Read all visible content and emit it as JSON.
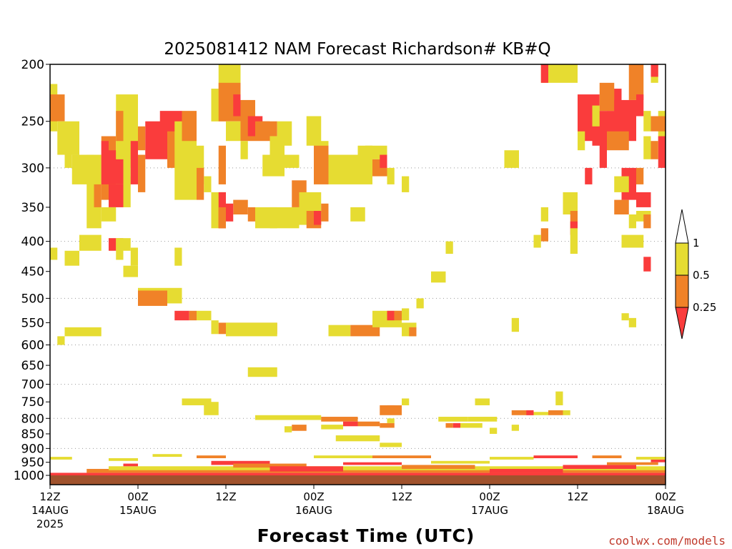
{
  "title": "2025081412 NAM Forecast Richardson# KB#Q",
  "watermark": "coolwx.com/models",
  "chart_data": {
    "type": "heatmap",
    "title": "2025081412 NAM Forecast Richardson# KB#Q",
    "xlabel": "Forecast Time (UTC)",
    "ylabel": "",
    "x_unit": "hours since 2025-08-14 12Z",
    "xlim": [
      0,
      84
    ],
    "ylim": [
      1000,
      200
    ],
    "y_scale": "log",
    "grid": "dotted horizontal",
    "y_ticks": [
      200,
      250,
      300,
      350,
      400,
      450,
      500,
      550,
      600,
      650,
      700,
      750,
      800,
      850,
      900,
      950,
      1000
    ],
    "y_gridlines": [
      300,
      400,
      500,
      600,
      700,
      800,
      900
    ],
    "x_ticks": [
      {
        "x": 0,
        "label": "12Z",
        "sub": "14AUG",
        "sub2": "2025"
      },
      {
        "x": 12,
        "label": "00Z",
        "sub": "15AUG",
        "sub2": ""
      },
      {
        "x": 24,
        "label": "12Z",
        "sub": "",
        "sub2": ""
      },
      {
        "x": 36,
        "label": "00Z",
        "sub": "16AUG",
        "sub2": ""
      },
      {
        "x": 48,
        "label": "12Z",
        "sub": "",
        "sub2": ""
      },
      {
        "x": 60,
        "label": "00Z",
        "sub": "17AUG",
        "sub2": ""
      },
      {
        "x": 72,
        "label": "12Z",
        "sub": "",
        "sub2": ""
      },
      {
        "x": 84,
        "label": "00Z",
        "sub": "18AUG",
        "sub2": ""
      }
    ],
    "legend": {
      "placement": "right",
      "bins": [
        {
          "range": [
            0.5,
            1.0
          ],
          "color": "#e6dc32"
        },
        {
          "range": [
            0.25,
            0.5
          ],
          "color": "#f08228"
        },
        {
          "range": [
            0.0,
            0.25
          ],
          "color": "#fa3c3c"
        }
      ],
      "labels": [
        "1",
        "0.5",
        "0.25"
      ]
    },
    "ground_color": "#a0522d",
    "colors": {
      "y": "#e6dc32",
      "o": "#f08228",
      "r": "#fa3c3c"
    },
    "cells": [
      [
        "y",
        0,
        1,
        216,
        260
      ],
      [
        "o",
        0,
        2,
        225,
        250
      ],
      [
        "y",
        1,
        4,
        250,
        285
      ],
      [
        "y",
        2,
        3,
        270,
        300
      ],
      [
        "y",
        3,
        6,
        285,
        320
      ],
      [
        "y",
        5,
        7,
        285,
        380
      ],
      [
        "o",
        6,
        7,
        320,
        350
      ],
      [
        "o",
        7,
        9,
        265,
        340
      ],
      [
        "r",
        7,
        8,
        270,
        320
      ],
      [
        "r",
        8,
        10,
        320,
        350
      ],
      [
        "y",
        7,
        9,
        350,
        370
      ],
      [
        "y",
        9,
        11,
        285,
        320
      ],
      [
        "y",
        10,
        11,
        310,
        350
      ],
      [
        "r",
        8,
        10,
        280,
        320
      ],
      [
        "y",
        9,
        11,
        260,
        290
      ],
      [
        "y",
        9,
        12,
        225,
        290
      ],
      [
        "o",
        9,
        10,
        240,
        270
      ],
      [
        "y",
        11,
        12,
        260,
        300
      ],
      [
        "r",
        11,
        12,
        270,
        320
      ],
      [
        "o",
        12,
        13,
        285,
        330
      ],
      [
        "r",
        13,
        16,
        250,
        290
      ],
      [
        "o",
        12,
        13,
        255,
        280
      ],
      [
        "r",
        15,
        18,
        240,
        285
      ],
      [
        "o",
        16,
        18,
        260,
        300
      ],
      [
        "y",
        17,
        20,
        250,
        340
      ],
      [
        "o",
        18,
        20,
        240,
        270
      ],
      [
        "y",
        19,
        21,
        275,
        320
      ],
      [
        "o",
        20,
        21,
        300,
        340
      ],
      [
        "y",
        21,
        22,
        310,
        330
      ],
      [
        "y",
        22,
        24,
        220,
        250
      ],
      [
        "y",
        22,
        24,
        330,
        380
      ],
      [
        "o",
        23,
        24,
        275,
        320
      ],
      [
        "r",
        23,
        24,
        330,
        380
      ],
      [
        "o",
        23,
        24,
        350,
        380
      ],
      [
        "y",
        23,
        26,
        200,
        220
      ],
      [
        "y",
        22,
        23,
        230,
        250
      ],
      [
        "o",
        23,
        26,
        215,
        250
      ],
      [
        "r",
        25,
        26,
        225,
        245
      ],
      [
        "y",
        24,
        26,
        250,
        270
      ],
      [
        "o",
        26,
        28,
        230,
        270
      ],
      [
        "r",
        27,
        29,
        245,
        265
      ],
      [
        "y",
        26,
        27,
        270,
        290
      ],
      [
        "o",
        28,
        30,
        250,
        270
      ],
      [
        "y",
        29,
        30,
        285,
        310
      ],
      [
        "y",
        28,
        31,
        350,
        380
      ],
      [
        "o",
        25,
        27,
        340,
        360
      ],
      [
        "r",
        24,
        25,
        345,
        370
      ],
      [
        "o",
        27,
        28,
        350,
        370
      ],
      [
        "y",
        30,
        34,
        350,
        380
      ],
      [
        "o",
        33,
        35,
        315,
        350
      ],
      [
        "y",
        34,
        37,
        330,
        375
      ],
      [
        "o",
        35,
        37,
        355,
        380
      ],
      [
        "r",
        36,
        37,
        355,
        375
      ],
      [
        "o",
        37,
        38,
        345,
        370
      ],
      [
        "o",
        29,
        31,
        250,
        265
      ],
      [
        "y",
        31,
        33,
        250,
        275
      ],
      [
        "y",
        30,
        32,
        265,
        310
      ],
      [
        "y",
        32,
        34,
        285,
        300
      ],
      [
        "y",
        35,
        37,
        245,
        275
      ],
      [
        "y",
        36,
        38,
        270,
        300
      ],
      [
        "o",
        36,
        38,
        275,
        320
      ],
      [
        "y",
        38,
        44,
        285,
        320
      ],
      [
        "o",
        44,
        46,
        290,
        310
      ],
      [
        "y",
        42,
        44,
        275,
        300
      ],
      [
        "y",
        43,
        46,
        275,
        290
      ],
      [
        "r",
        45,
        46,
        285,
        300
      ],
      [
        "y",
        41,
        43,
        350,
        370
      ],
      [
        "y",
        50,
        51,
        500,
        520
      ],
      [
        "y",
        0,
        1,
        410,
        430
      ],
      [
        "y",
        2,
        4,
        415,
        440
      ],
      [
        "y",
        4,
        7,
        390,
        415
      ],
      [
        "r",
        8,
        9,
        395,
        415
      ],
      [
        "o",
        9,
        10,
        395,
        415
      ],
      [
        "y",
        9,
        10,
        395,
        430
      ],
      [
        "y",
        10,
        11,
        395,
        415
      ],
      [
        "y",
        11,
        12,
        410,
        440
      ],
      [
        "y",
        17,
        18,
        410,
        440
      ],
      [
        "y",
        12,
        18,
        480,
        510
      ],
      [
        "o",
        12,
        16,
        485,
        515
      ],
      [
        "r",
        17,
        19,
        525,
        545
      ],
      [
        "o",
        19,
        20,
        525,
        545
      ],
      [
        "y",
        20,
        22,
        525,
        545
      ],
      [
        "y",
        22,
        23,
        545,
        575
      ],
      [
        "o",
        23,
        31,
        550,
        575
      ],
      [
        "y",
        24,
        31,
        550,
        580
      ],
      [
        "y",
        2,
        7,
        560,
        580
      ],
      [
        "y",
        1,
        2,
        580,
        600
      ],
      [
        "y",
        38,
        41,
        555,
        580
      ],
      [
        "o",
        41,
        45,
        555,
        580
      ],
      [
        "y",
        44,
        48,
        525,
        560
      ],
      [
        "r",
        46,
        47,
        525,
        545
      ],
      [
        "o",
        47,
        48,
        525,
        545
      ],
      [
        "y",
        48,
        49,
        520,
        545
      ],
      [
        "y",
        48,
        50,
        550,
        580
      ],
      [
        "o",
        49,
        50,
        560,
        580
      ],
      [
        "y",
        27,
        31,
        655,
        680
      ],
      [
        "y",
        18,
        22,
        740,
        760
      ],
      [
        "y",
        21,
        23,
        750,
        790
      ],
      [
        "y",
        28,
        37,
        790,
        805
      ],
      [
        "o",
        37,
        42,
        795,
        810
      ],
      [
        "r",
        40,
        42,
        810,
        825
      ],
      [
        "o",
        42,
        45,
        810,
        825
      ],
      [
        "o",
        45,
        47,
        815,
        830
      ],
      [
        "y",
        37,
        40,
        820,
        835
      ],
      [
        "o",
        33,
        35,
        820,
        840
      ],
      [
        "y",
        32,
        33,
        825,
        845
      ],
      [
        "y",
        39,
        45,
        855,
        875
      ],
      [
        "y",
        45,
        48,
        880,
        895
      ],
      [
        "r",
        46,
        47,
        760,
        780
      ],
      [
        "o",
        45,
        48,
        760,
        790
      ],
      [
        "y",
        46,
        47,
        800,
        815
      ],
      [
        "y",
        48,
        49,
        740,
        760
      ],
      [
        "y",
        53,
        57,
        795,
        810
      ],
      [
        "y",
        57,
        61,
        795,
        810
      ],
      [
        "o",
        54,
        55,
        815,
        830
      ],
      [
        "r",
        55,
        56,
        815,
        830
      ],
      [
        "y",
        56,
        59,
        815,
        830
      ],
      [
        "y",
        60,
        61,
        830,
        850
      ],
      [
        "y",
        58,
        60,
        740,
        760
      ],
      [
        "y",
        63,
        64,
        820,
        840
      ],
      [
        "o",
        63,
        66,
        775,
        790
      ],
      [
        "r",
        65,
        66,
        775,
        790
      ],
      [
        "y",
        66,
        68,
        780,
        790
      ],
      [
        "o",
        68,
        70,
        775,
        790
      ],
      [
        "y",
        70,
        71,
        775,
        790
      ],
      [
        "y",
        69,
        70,
        720,
        760
      ],
      [
        "y",
        63,
        64,
        540,
        570
      ],
      [
        "y",
        67,
        72,
        200,
        215
      ],
      [
        "r",
        67,
        68,
        200,
        215
      ],
      [
        "r",
        72,
        75,
        225,
        270
      ],
      [
        "r",
        74,
        78,
        240,
        275
      ],
      [
        "r",
        76,
        78,
        220,
        240
      ],
      [
        "o",
        75,
        77,
        215,
        240
      ],
      [
        "y",
        74,
        75,
        235,
        255
      ],
      [
        "r",
        77,
        80,
        230,
        270
      ],
      [
        "o",
        76,
        79,
        260,
        280
      ],
      [
        "r",
        75,
        76,
        270,
        300
      ],
      [
        "r",
        73,
        74,
        300,
        320
      ],
      [
        "r",
        78,
        80,
        300,
        340
      ],
      [
        "o",
        80,
        81,
        300,
        320
      ],
      [
        "r",
        80,
        82,
        330,
        350
      ],
      [
        "o",
        77,
        79,
        340,
        360
      ],
      [
        "y",
        80,
        82,
        355,
        370
      ],
      [
        "y",
        83,
        84,
        240,
        270
      ],
      [
        "o",
        82,
        84,
        245,
        260
      ],
      [
        "r",
        83,
        84,
        265,
        300
      ],
      [
        "o",
        82,
        83,
        270,
        290
      ],
      [
        "y",
        81,
        82,
        265,
        290
      ],
      [
        "o",
        79,
        81,
        200,
        230
      ],
      [
        "y",
        81,
        82,
        240,
        260
      ],
      [
        "r",
        80,
        81,
        225,
        245
      ],
      [
        "y",
        82,
        83,
        200,
        215
      ],
      [
        "r",
        82,
        83,
        200,
        210
      ],
      [
        "o",
        84,
        85,
        225,
        240
      ],
      [
        "r",
        84,
        85,
        240,
        250
      ],
      [
        "y",
        84,
        85,
        250,
        300
      ],
      [
        "o",
        84,
        85,
        320,
        340
      ],
      [
        "y",
        67,
        68,
        350,
        370
      ],
      [
        "o",
        67,
        68,
        380,
        400
      ],
      [
        "y",
        66,
        67,
        390,
        410
      ],
      [
        "y",
        70,
        72,
        330,
        360
      ],
      [
        "o",
        71,
        72,
        355,
        380
      ],
      [
        "r",
        71,
        72,
        370,
        390
      ],
      [
        "y",
        71,
        72,
        380,
        420
      ],
      [
        "y",
        77,
        79,
        310,
        330
      ],
      [
        "o",
        81,
        82,
        360,
        380
      ],
      [
        "y",
        79,
        80,
        360,
        380
      ],
      [
        "r",
        81,
        82,
        425,
        450
      ],
      [
        "y",
        78,
        81,
        390,
        410
      ],
      [
        "y",
        78,
        79,
        530,
        545
      ],
      [
        "y",
        79,
        80,
        540,
        560
      ],
      [
        "y",
        72,
        73,
        260,
        280
      ],
      [
        "y",
        54,
        55,
        400,
        420
      ],
      [
        "y",
        62,
        64,
        280,
        300
      ],
      [
        "y",
        48,
        49,
        310,
        330
      ],
      [
        "y",
        52,
        54,
        450,
        470
      ],
      [
        "y",
        30,
        32,
        355,
        370
      ],
      [
        "y",
        10,
        12,
        440,
        460
      ],
      [
        "y",
        46,
        47,
        300,
        320
      ]
    ],
    "surface_bands": [
      [
        0,
        84,
        990,
        1000,
        "r"
      ],
      [
        5,
        84,
        975,
        990,
        "o"
      ],
      [
        8,
        84,
        965,
        980,
        "y"
      ],
      [
        10,
        12,
        955,
        965,
        "r"
      ],
      [
        22,
        30,
        945,
        960,
        "r"
      ],
      [
        25,
        35,
        955,
        970,
        "o"
      ],
      [
        30,
        40,
        965,
        985,
        "r"
      ],
      [
        40,
        48,
        950,
        960,
        "r"
      ],
      [
        48,
        58,
        960,
        975,
        "o"
      ],
      [
        52,
        60,
        945,
        955,
        "y"
      ],
      [
        60,
        70,
        975,
        990,
        "r"
      ],
      [
        70,
        80,
        960,
        975,
        "r"
      ],
      [
        76,
        83,
        950,
        960,
        "o"
      ],
      [
        82,
        84,
        940,
        950,
        "r"
      ],
      [
        0,
        3,
        930,
        940,
        "y"
      ],
      [
        8,
        12,
        935,
        945,
        "y"
      ],
      [
        14,
        18,
        920,
        930,
        "y"
      ],
      [
        20,
        24,
        925,
        935,
        "o"
      ],
      [
        36,
        44,
        925,
        935,
        "y"
      ],
      [
        44,
        52,
        925,
        935,
        "o"
      ],
      [
        60,
        66,
        930,
        940,
        "y"
      ],
      [
        66,
        72,
        925,
        935,
        "r"
      ],
      [
        74,
        78,
        925,
        935,
        "o"
      ],
      [
        80,
        84,
        930,
        940,
        "y"
      ]
    ]
  }
}
